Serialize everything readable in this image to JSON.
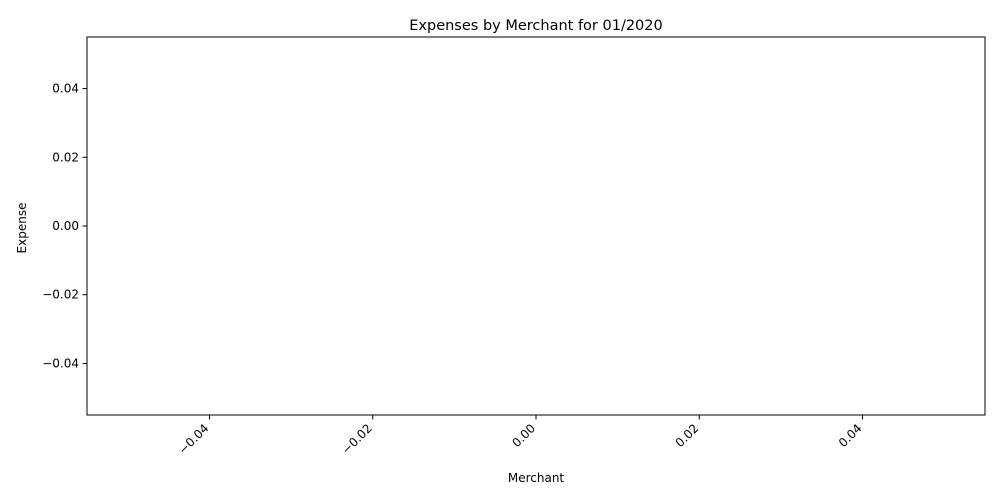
{
  "chart_data": {
    "type": "bar",
    "title": "Expenses by Merchant for 01/2020",
    "xlabel": "Merchant",
    "ylabel": "Expense",
    "categories": [],
    "values": [],
    "xlim": [
      -0.055,
      0.055
    ],
    "ylim": [
      -0.055,
      0.055
    ],
    "xticks": [
      -0.04,
      -0.02,
      0.0,
      0.02,
      0.04
    ],
    "xtick_labels": [
      "−0.04",
      "−0.02",
      "0.00",
      "0.02",
      "0.04"
    ],
    "yticks": [
      -0.04,
      -0.02,
      0.0,
      0.02,
      0.04
    ],
    "ytick_labels": [
      "−0.04",
      "−0.02",
      "0.00",
      "0.02",
      "0.04"
    ],
    "xtick_rotation": 45,
    "grid": false,
    "legend": "none",
    "colors": {
      "axis": "#000000",
      "background": "#ffffff"
    }
  }
}
